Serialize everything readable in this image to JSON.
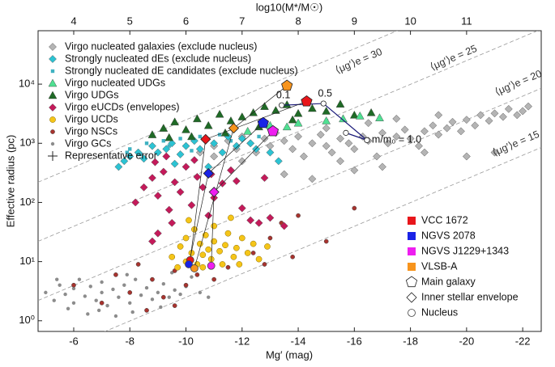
{
  "chart_data": {
    "type": "scatter",
    "xlabel": "Mg′ (mag)",
    "ylabel": "Effective radius (pc)",
    "x2label": "log10(M*/M☉)",
    "xlim": [
      -4.73,
      -22.66
    ],
    "xticks": [
      -6,
      -8,
      -10,
      -12,
      -14,
      -16,
      -18,
      -20,
      -22
    ],
    "x2lim": [
      3.365,
      12.33
    ],
    "x2ticks": [
      4,
      5,
      6,
      7,
      8,
      9,
      10,
      11
    ],
    "ylim": [
      0.66,
      80000
    ],
    "ylog": true,
    "yticks": [
      {
        "value": 1,
        "label": "10⁰"
      },
      {
        "value": 10,
        "label": "10¹"
      },
      {
        "value": 100,
        "label": "10²"
      },
      {
        "value": 1000,
        "label": "10³"
      },
      {
        "value": 10000,
        "label": "10⁴"
      }
    ],
    "series": [
      {
        "name": "Virgo nucleated galaxies (exclude nucleus)",
        "marker": "diamond",
        "color": "#b4b4b4",
        "x": [
          -10.5,
          -11,
          -11.5,
          -11.8,
          -12,
          -12.3,
          -12.5,
          -12.8,
          -13,
          -13.2,
          -13.5,
          -13.8,
          -14,
          -14.2,
          -14.5,
          -14.8,
          -15,
          -15.2,
          -15.5,
          -15.8,
          -16,
          -16.3,
          -16.5,
          -16.8,
          -17,
          -17.2,
          -17.5,
          -17.8,
          -18,
          -18.3,
          -18.5,
          -18.8,
          -19,
          -19.3,
          -19.5,
          -19.8,
          -20,
          -20.3,
          -20.5,
          -20.8,
          -21,
          -21.3,
          -21.5,
          -21.8,
          -22,
          -22.2,
          -13.5,
          -14.5,
          -16,
          -17,
          -18.5,
          -20,
          -21,
          -15.5,
          -12,
          -11,
          -17.5,
          -19,
          -16.5,
          -15
        ],
        "y": [
          700,
          900,
          1100,
          800,
          1300,
          1000,
          700,
          1200,
          900,
          1500,
          1100,
          800,
          1300,
          600,
          1000,
          1400,
          900,
          700,
          1200,
          1000,
          800,
          1300,
          1100,
          600,
          1500,
          1000,
          1300,
          1700,
          1200,
          900,
          1600,
          2000,
          1400,
          1800,
          2300,
          1600,
          2500,
          2000,
          3000,
          2400,
          3200,
          2800,
          3800,
          3000,
          3500,
          4200,
          300,
          250,
          350,
          400,
          700,
          600,
          700,
          500,
          500,
          600,
          2600,
          3000,
          2200,
          1800
        ]
      },
      {
        "name": "Strongly nucleated dEs (exclude nucleus)",
        "marker": "diamond",
        "color": "#2cc3d3",
        "x": [
          -7.8,
          -8,
          -8.3,
          -8.5,
          -8.8,
          -9,
          -9.3,
          -9.5,
          -9.8,
          -10,
          -10.3,
          -10.5,
          -11,
          -11.3,
          -11.8,
          -12,
          -12.5,
          -13,
          -13.3,
          -10.8,
          -9.6,
          -11.5,
          -7.6,
          -12.3
        ],
        "y": [
          500,
          600,
          700,
          550,
          900,
          700,
          800,
          1000,
          650,
          900,
          1100,
          800,
          1000,
          700,
          900,
          1200,
          800,
          700,
          500,
          400,
          450,
          1300,
          400,
          1000
        ]
      },
      {
        "name": "Strongly nucleated dE candidates (exclude nucleus)",
        "marker": "square",
        "color": "#3fb2c2",
        "x": [
          -8,
          -8.6,
          -9.2,
          -9.8,
          -10.5,
          -11.2,
          -8.4,
          -9.4,
          -10.2,
          -11.6,
          -12.6,
          -7.9
        ],
        "y": [
          800,
          1000,
          1100,
          1200,
          1300,
          1400,
          650,
          900,
          750,
          1100,
          1300,
          700
        ]
      },
      {
        "name": "Virgo nucleated UDGs",
        "marker": "triangle",
        "color": "#4fe092",
        "x": [
          -13.6,
          -14,
          -15,
          -16.2,
          -16.9,
          -13,
          -12.2,
          -15.6
        ],
        "y": [
          1900,
          2200,
          2400,
          2900,
          2700,
          2000,
          1600,
          2600
        ]
      },
      {
        "name": "Virgo UDGs",
        "marker": "triangle",
        "color": "#1f6a26",
        "x": [
          -8.8,
          -9.2,
          -9.6,
          -10,
          -10.4,
          -10.8,
          -11.2,
          -11.6,
          -12,
          -12.4,
          -12.8,
          -13.2,
          -13.6,
          -14,
          -14.5,
          -15,
          -15.5,
          -16,
          -10.2,
          -11.4,
          -13.8,
          -12.6,
          -9.4,
          -16.6
        ],
        "y": [
          1400,
          1800,
          2300,
          1700,
          2600,
          2000,
          3100,
          2400,
          2800,
          3300,
          4200,
          3600,
          4500,
          3200,
          3900,
          3500,
          4600,
          3000,
          1300,
          1500,
          2500,
          1900,
          1250,
          3300
        ]
      },
      {
        "name": "Virgo eUCDs (envelopes)",
        "marker": "diamond",
        "color": "#c41a5a",
        "x": [
          -8.2,
          -8.5,
          -8.8,
          -9,
          -9.2,
          -9.4,
          -9.6,
          -9.8,
          -10,
          -10.2,
          -10.4,
          -10.6,
          -10.8,
          -11,
          -11.3,
          -11.6,
          -12,
          -12.3,
          -12.6,
          -13,
          -13.5,
          -9,
          -8.8,
          -9.5,
          -11.8,
          -10.3,
          -9.3,
          -8.9,
          -10.9,
          -12.8
        ],
        "y": [
          100,
          180,
          260,
          130,
          330,
          75,
          220,
          150,
          400,
          90,
          270,
          180,
          60,
          120,
          210,
          350,
          80,
          50,
          45,
          55,
          40,
          30,
          22,
          45,
          230,
          520,
          600,
          480,
          300,
          260
        ]
      },
      {
        "name": "Virgo UCDs",
        "marker": "circle",
        "color": "#f5c518",
        "x": [
          -9.5,
          -9.8,
          -10,
          -10,
          -10.2,
          -10.3,
          -10.4,
          -10.5,
          -10.6,
          -10.7,
          -10.8,
          -10.9,
          -11,
          -11,
          -11.2,
          -11.3,
          -11.4,
          -11.5,
          -11.7,
          -11.8,
          -12,
          -12.2,
          -12.4,
          -12.6,
          -9.7,
          -10.1,
          -11.6,
          -12.9,
          -10.6,
          -11.9
        ],
        "y": [
          12,
          18,
          10,
          25,
          14,
          35,
          9,
          20,
          13,
          28,
          16,
          11,
          22,
          40,
          15,
          9,
          19,
          30,
          12,
          17,
          25,
          14,
          20,
          11,
          8,
          50,
          55,
          18,
          8,
          9
        ]
      },
      {
        "name": "Virgo NSCs",
        "marker": "smallcircle",
        "color": "#a8332e",
        "x": [
          -6,
          -7,
          -7.5,
          -8,
          -8.3,
          -8.8,
          -9.2,
          -9.6,
          -10,
          -10.4,
          -11,
          -11.5,
          -12.4,
          -13,
          -13.4,
          -14,
          -16,
          -15,
          -13.8,
          -12.8,
          -9.6,
          -8.6
        ],
        "y": [
          4,
          2,
          6,
          3,
          9,
          5,
          2.5,
          7,
          4,
          6,
          5,
          8,
          14,
          25,
          45,
          60,
          80,
          22,
          12,
          9,
          1.8,
          1.5
        ]
      },
      {
        "name": "Virgo GCs",
        "marker": "dot",
        "color": "#8c8c8c",
        "x": [
          -5,
          -5.3,
          -5.5,
          -5.7,
          -6,
          -6,
          -6.2,
          -6.4,
          -6.6,
          -6.8,
          -7,
          -7,
          -7.2,
          -7.4,
          -7.6,
          -7.8,
          -8,
          -8,
          -8.2,
          -8.4,
          -8.6,
          -8.8,
          -9,
          -9.2,
          -9.4,
          -9.6,
          -9.8,
          -10,
          -10.2,
          -10.5,
          -5.8,
          -6.9,
          -8.1,
          -9.1,
          -7.5,
          -6.5,
          -5.4,
          -7.9,
          -9.5,
          -10.8
        ],
        "y": [
          3,
          2.2,
          4,
          2.8,
          3.5,
          2,
          5,
          2.6,
          3.8,
          2.2,
          4.5,
          3,
          1.8,
          3.4,
          2.5,
          4,
          3,
          2,
          5,
          2.7,
          3.6,
          2.3,
          3,
          4.2,
          2.5,
          3.3,
          2.8,
          3.8,
          5.5,
          3,
          1.6,
          1.5,
          1.4,
          1.7,
          1.2,
          1.3,
          5,
          6,
          6.5,
          2.5
        ]
      }
    ],
    "error_label": "Representative error",
    "objects": [
      {
        "name": "VCC 1672",
        "color": "#e8161b",
        "galaxy": {
          "x": -14.3,
          "y": 5100
        },
        "envelope": {
          "x": -10.7,
          "y": 1170
        },
        "nucleus": {
          "x": -10.15,
          "y": 10.6
        }
      },
      {
        "name": "NGVS 2078",
        "color": "#1a23e6",
        "galaxy": {
          "x": -12.75,
          "y": 2200
        },
        "envelope": {
          "x": -10.8,
          "y": 310
        },
        "nucleus": {
          "x": -10.1,
          "y": 9
        }
      },
      {
        "name": "NGVS J1229+1343",
        "color": "#ee1ef0",
        "galaxy": {
          "x": -13.1,
          "y": 1600
        },
        "envelope": {
          "x": -11,
          "y": 150
        },
        "nucleus": {
          "x": -10.9,
          "y": 8.5
        }
      },
      {
        "name": "VLSB-A",
        "color": "#f7941d",
        "galaxy": {
          "x": -13.6,
          "y": 9400
        },
        "envelope": {
          "x": -11.7,
          "y": 1800
        },
        "nucleus": {
          "x": -10.3,
          "y": 7.7
        }
      }
    ],
    "shapes": {
      "galaxy": "Main galaxy",
      "envelope": "Inner stellar envelope",
      "nucleus": "Nucleus"
    },
    "tracks": [
      {
        "x": [
          -13.41,
          -14.9,
          -16.45
        ],
        "y": [
          4400,
          4700,
          1130
        ],
        "labels": [
          "0.1",
          "0.5",
          "m/m₀ = 1.0"
        ]
      },
      {
        "x": [
          -15.7,
          -16.45
        ],
        "y": [
          1500,
          1130
        ]
      }
    ],
    "sb_lines": [
      {
        "label": "⟨μg′⟩e = 30",
        "x": [
          -4.73,
          -22.66
        ],
        "y": [
          220,
          850000
        ]
      },
      {
        "label": "⟨μg′⟩e = 25",
        "x": [
          -4.73,
          -22.66
        ],
        "y": [
          22,
          85000
        ]
      },
      {
        "label": "⟨μg′⟩e = 20",
        "x": [
          -4.73,
          -22.66
        ],
        "y": [
          2.2,
          8500
        ]
      },
      {
        "label": "⟨μg′⟩e = 15",
        "x": [
          -4.73,
          -22.66
        ],
        "y": [
          0.22,
          850
        ]
      }
    ]
  }
}
